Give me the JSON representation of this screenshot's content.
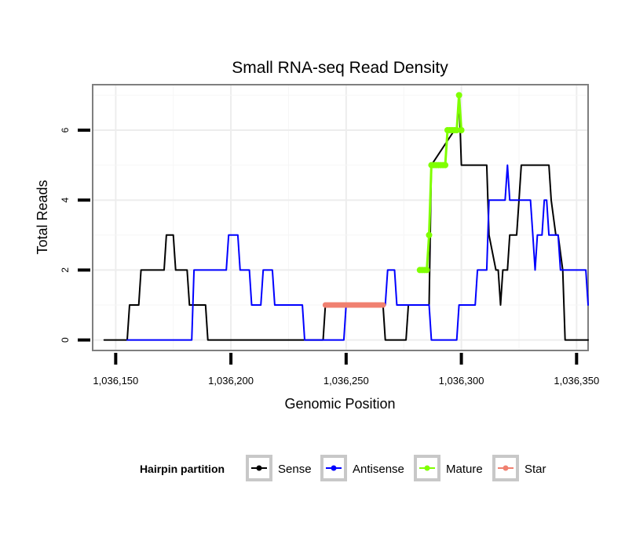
{
  "chart_data": {
    "type": "line",
    "title": "Small RNA-seq Read Density",
    "xlabel": "Genomic Position",
    "ylabel": "Total Reads",
    "xlim": [
      1036140,
      1036355
    ],
    "ylim": [
      -0.3,
      7.3
    ],
    "x_ticks": [
      1036150,
      1036200,
      1036250,
      1036300,
      1036350
    ],
    "x_tick_labels": [
      "1,036,150",
      "1,036,200",
      "1,036,250",
      "1,036,300",
      "1,036,350"
    ],
    "y_ticks": [
      0,
      2,
      4,
      6
    ],
    "y_tick_labels": [
      "0",
      "2",
      "4",
      "6"
    ],
    "grid": true,
    "legend": {
      "title": "Hairpin partition",
      "position": "bottom",
      "entries": [
        {
          "label": "Sense",
          "color": "#000000"
        },
        {
          "label": "Antisense",
          "color": "#0000ff"
        },
        {
          "label": "Mature",
          "color": "#7fff00"
        },
        {
          "label": "Star",
          "color": "#f08070"
        }
      ]
    },
    "series": [
      {
        "name": "Sense",
        "color": "#000000",
        "x": [
          1036145,
          1036155,
          1036156,
          1036160,
          1036161,
          1036162,
          1036163,
          1036171,
          1036172,
          1036175,
          1036176,
          1036180,
          1036181,
          1036182,
          1036183,
          1036189,
          1036190,
          1036240,
          1036241,
          1036266,
          1036267,
          1036276,
          1036277,
          1036286,
          1036287,
          1036297,
          1036298,
          1036299,
          1036300,
          1036311,
          1036312,
          1036315,
          1036316,
          1036317,
          1036318,
          1036320,
          1036321,
          1036324,
          1036325,
          1036326,
          1036327,
          1036338,
          1036339,
          1036341,
          1036342,
          1036344,
          1036345,
          1036355
        ],
        "y": [
          0,
          0,
          1,
          1,
          2,
          2,
          2,
          2,
          3,
          3,
          2,
          2,
          2,
          1,
          1,
          1,
          0,
          0,
          1,
          1,
          0,
          0,
          1,
          1,
          5,
          6,
          6,
          7,
          5,
          5,
          3,
          2,
          2,
          1,
          2,
          2,
          3,
          3,
          4,
          5,
          5,
          5,
          4,
          3,
          3,
          2,
          0,
          0
        ]
      },
      {
        "name": "Antisense",
        "color": "#0000ff",
        "x": [
          1036155,
          1036183,
          1036184,
          1036198,
          1036199,
          1036203,
          1036204,
          1036208,
          1036209,
          1036213,
          1036214,
          1036218,
          1036219,
          1036231,
          1036232,
          1036249,
          1036250,
          1036267,
          1036268,
          1036271,
          1036272,
          1036286,
          1036287,
          1036298,
          1036299,
          1036306,
          1036307,
          1036311,
          1036312,
          1036319,
          1036320,
          1036321,
          1036322,
          1036330,
          1036331,
          1036332,
          1036333,
          1036335,
          1036336,
          1036337,
          1036338,
          1036341,
          1036342,
          1036343,
          1036344,
          1036354,
          1036355
        ],
        "y": [
          0,
          0,
          2,
          2,
          3,
          3,
          2,
          2,
          1,
          1,
          2,
          2,
          1,
          1,
          0,
          0,
          1,
          1,
          2,
          2,
          1,
          1,
          0,
          0,
          1,
          1,
          2,
          2,
          4,
          4,
          5,
          4,
          4,
          4,
          3,
          2,
          3,
          3,
          4,
          4,
          3,
          3,
          3,
          2,
          2,
          2,
          1
        ]
      },
      {
        "name": "Mature",
        "color": "#7fff00",
        "x": [
          1036282,
          1036283,
          1036284,
          1036285,
          1036286,
          1036287,
          1036288,
          1036289,
          1036290,
          1036291,
          1036292,
          1036293,
          1036294,
          1036295,
          1036296,
          1036297,
          1036298,
          1036299,
          1036300
        ],
        "y": [
          2,
          2,
          2,
          2,
          3,
          5,
          5,
          5,
          5,
          5,
          5,
          5,
          6,
          6,
          6,
          6,
          6,
          7,
          6
        ]
      },
      {
        "name": "Star",
        "color": "#f08070",
        "x": [
          1036241,
          1036243,
          1036245,
          1036247,
          1036249,
          1036251,
          1036253,
          1036255,
          1036257,
          1036259,
          1036261,
          1036263,
          1036265,
          1036266
        ],
        "y": [
          1,
          1,
          1,
          1,
          1,
          1,
          1,
          1,
          1,
          1,
          1,
          1,
          1,
          1
        ]
      }
    ]
  }
}
